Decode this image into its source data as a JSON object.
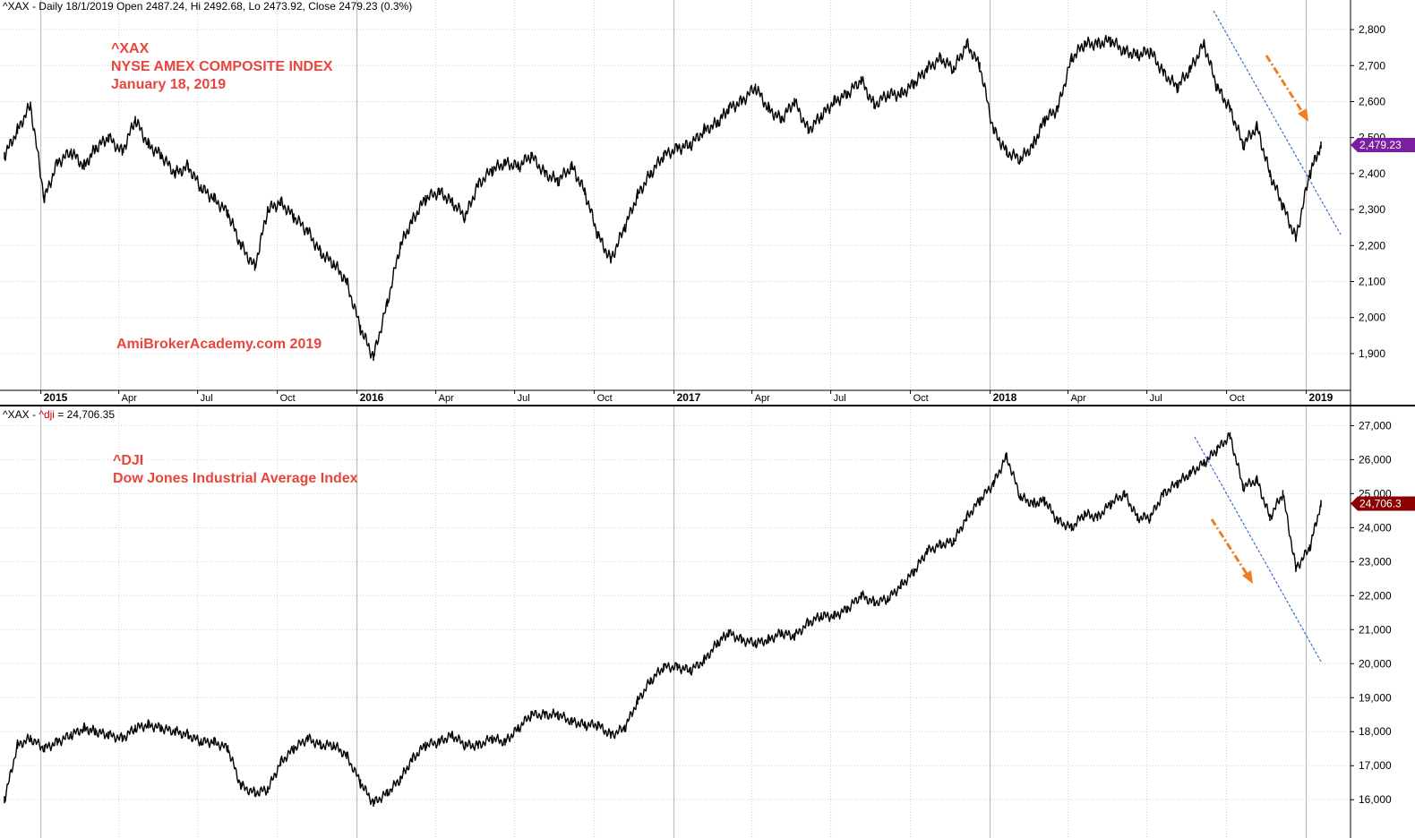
{
  "panels": {
    "top": {
      "header": "^XAX - Daily 18/1/2019 Open 2487.24, Hi 2492.68, Lo 2473.92, Close 2479.23 (0.3%)",
      "annotation": {
        "line1": "^XAX",
        "line2": "NYSE AMEX COMPOSITE INDEX",
        "line3": "January 18, 2019"
      },
      "watermark": "AmiBrokerAcademy.com  2019",
      "last_label": "2,479.23",
      "last_label_color": "#7b1fa2"
    },
    "bottom": {
      "header_prefix": "^XAX - ",
      "header_symbol": "^dji",
      "header_suffix": " = 24,706.35",
      "annotation": {
        "line1": "^DJI",
        "line2": "Dow Jones Industrial Average Index"
      },
      "last_label": "24,706.3",
      "last_label_color": "#8b0000"
    }
  },
  "colors": {
    "annotation": "#e8453c",
    "trendline": "#3a6fc4",
    "arrow": "#f07d1e",
    "price": "#000000",
    "grid": "#cfcfcf"
  },
  "chart_data": [
    {
      "type": "line",
      "name": "top-panel",
      "series": [
        {
          "x": [
            "2014-11-20",
            "2014-12-05",
            "2014-12-20",
            "2015-01-05",
            "2015-01-20",
            "2015-02-05",
            "2015-02-20",
            "2015-03-05",
            "2015-03-20",
            "2015-04-05",
            "2015-04-20",
            "2015-05-05",
            "2015-05-20",
            "2015-06-05",
            "2015-06-20",
            "2015-07-05",
            "2015-07-20",
            "2015-08-05",
            "2015-08-20",
            "2015-09-05",
            "2015-09-20",
            "2015-10-05",
            "2015-10-20",
            "2015-11-05",
            "2015-11-20",
            "2015-12-05",
            "2015-12-20",
            "2016-01-05",
            "2016-01-20",
            "2016-02-05",
            "2016-02-20",
            "2016-03-05",
            "2016-03-20",
            "2016-04-05",
            "2016-04-20",
            "2016-05-05",
            "2016-05-20",
            "2016-06-05",
            "2016-06-20",
            "2016-07-05",
            "2016-07-20",
            "2016-08-05",
            "2016-08-20",
            "2016-09-05",
            "2016-09-20",
            "2016-10-05",
            "2016-10-20",
            "2016-11-05",
            "2016-11-20",
            "2016-12-05",
            "2016-12-20",
            "2017-01-05",
            "2017-01-20",
            "2017-02-05",
            "2017-02-20",
            "2017-03-05",
            "2017-03-20",
            "2017-04-05",
            "2017-04-20",
            "2017-05-05",
            "2017-05-20",
            "2017-06-05",
            "2017-06-20",
            "2017-07-05",
            "2017-07-20",
            "2017-08-05",
            "2017-08-20",
            "2017-09-05",
            "2017-09-20",
            "2017-10-05",
            "2017-10-20",
            "2017-11-05",
            "2017-11-20",
            "2017-12-05",
            "2017-12-20",
            "2018-01-05",
            "2018-01-20",
            "2018-02-05",
            "2018-02-20",
            "2018-03-05",
            "2018-03-20",
            "2018-04-05",
            "2018-04-20",
            "2018-05-05",
            "2018-05-20",
            "2018-06-05",
            "2018-06-20",
            "2018-07-05",
            "2018-07-20",
            "2018-08-05",
            "2018-08-20",
            "2018-09-05",
            "2018-09-20",
            "2018-10-05",
            "2018-10-20",
            "2018-11-05",
            "2018-11-20",
            "2018-12-05",
            "2018-12-20",
            "2019-01-05",
            "2019-01-18"
          ],
          "values": [
            2450,
            2520,
            2590,
            2330,
            2430,
            2460,
            2420,
            2470,
            2500,
            2460,
            2550,
            2480,
            2450,
            2400,
            2420,
            2360,
            2330,
            2290,
            2200,
            2140,
            2300,
            2320,
            2280,
            2240,
            2180,
            2150,
            2100,
            1970,
            1890,
            2040,
            2200,
            2270,
            2330,
            2350,
            2320,
            2280,
            2370,
            2410,
            2430,
            2420,
            2450,
            2400,
            2380,
            2420,
            2350,
            2230,
            2160,
            2250,
            2340,
            2400,
            2450,
            2470,
            2480,
            2520,
            2540,
            2580,
            2600,
            2640,
            2580,
            2550,
            2600,
            2520,
            2560,
            2600,
            2620,
            2660,
            2590,
            2620,
            2620,
            2650,
            2690,
            2720,
            2690,
            2760,
            2700,
            2520,
            2460,
            2440,
            2480,
            2550,
            2580,
            2720,
            2760,
            2760,
            2770,
            2740,
            2730,
            2740,
            2680,
            2640,
            2690,
            2760,
            2640,
            2580,
            2480,
            2530,
            2400,
            2310,
            2220,
            2400,
            2479.23
          ]
        }
      ],
      "ylim": [
        1850,
        2830
      ],
      "yticks": [
        "2,800",
        "2,700",
        "2,600",
        "2,500",
        "2,400",
        "2,300",
        "2,200",
        "2,100",
        "2,000",
        "1,900"
      ],
      "xticks": [
        {
          "label": "2015",
          "year": true
        },
        {
          "label": "Apr"
        },
        {
          "label": "Jul"
        },
        {
          "label": "Oct"
        },
        {
          "label": "2016",
          "year": true
        },
        {
          "label": "Apr"
        },
        {
          "label": "Jul"
        },
        {
          "label": "Oct"
        },
        {
          "label": "2017",
          "year": true
        },
        {
          "label": "Apr"
        },
        {
          "label": "Jul"
        },
        {
          "label": "Oct"
        },
        {
          "label": "2018",
          "year": true
        },
        {
          "label": "Apr"
        },
        {
          "label": "Jul"
        },
        {
          "label": "Oct"
        },
        {
          "label": "2019",
          "year": true
        }
      ],
      "grid": true
    },
    {
      "type": "line",
      "name": "bottom-panel",
      "series": [
        {
          "x": [
            "2014-11-20",
            "2014-12-05",
            "2014-12-20",
            "2015-01-05",
            "2015-01-20",
            "2015-02-05",
            "2015-02-20",
            "2015-03-05",
            "2015-03-20",
            "2015-04-05",
            "2015-04-20",
            "2015-05-05",
            "2015-05-20",
            "2015-06-05",
            "2015-06-20",
            "2015-07-05",
            "2015-07-20",
            "2015-08-05",
            "2015-08-20",
            "2015-09-05",
            "2015-09-20",
            "2015-10-05",
            "2015-10-20",
            "2015-11-05",
            "2015-11-20",
            "2015-12-05",
            "2015-12-20",
            "2016-01-05",
            "2016-01-20",
            "2016-02-05",
            "2016-02-20",
            "2016-03-05",
            "2016-03-20",
            "2016-04-05",
            "2016-04-20",
            "2016-05-05",
            "2016-05-20",
            "2016-06-05",
            "2016-06-20",
            "2016-07-05",
            "2016-07-20",
            "2016-08-05",
            "2016-08-20",
            "2016-09-05",
            "2016-09-20",
            "2016-10-05",
            "2016-10-20",
            "2016-11-05",
            "2016-11-20",
            "2016-12-05",
            "2016-12-20",
            "2017-01-05",
            "2017-01-20",
            "2017-02-05",
            "2017-02-20",
            "2017-03-05",
            "2017-03-20",
            "2017-04-05",
            "2017-04-20",
            "2017-05-05",
            "2017-05-20",
            "2017-06-05",
            "2017-06-20",
            "2017-07-05",
            "2017-07-20",
            "2017-08-05",
            "2017-08-20",
            "2017-09-05",
            "2017-09-20",
            "2017-10-05",
            "2017-10-20",
            "2017-11-05",
            "2017-11-20",
            "2017-12-05",
            "2017-12-20",
            "2018-01-05",
            "2018-01-20",
            "2018-02-05",
            "2018-02-20",
            "2018-03-05",
            "2018-03-20",
            "2018-04-05",
            "2018-04-20",
            "2018-05-05",
            "2018-05-20",
            "2018-06-05",
            "2018-06-20",
            "2018-07-05",
            "2018-07-20",
            "2018-08-05",
            "2018-08-20",
            "2018-09-05",
            "2018-09-20",
            "2018-10-05",
            "2018-10-20",
            "2018-11-05",
            "2018-11-20",
            "2018-12-05",
            "2018-12-20",
            "2019-01-05",
            "2019-01-18"
          ],
          "values": [
            16000,
            17600,
            17800,
            17500,
            17700,
            17900,
            18100,
            18000,
            17900,
            17800,
            18100,
            18200,
            18100,
            18000,
            17900,
            17700,
            17700,
            17500,
            16400,
            16200,
            16300,
            17100,
            17500,
            17800,
            17600,
            17600,
            17300,
            16500,
            15900,
            16200,
            16600,
            17200,
            17600,
            17700,
            17900,
            17600,
            17600,
            17800,
            17700,
            18100,
            18500,
            18500,
            18500,
            18300,
            18200,
            18200,
            17900,
            18100,
            18900,
            19500,
            19900,
            19900,
            19800,
            20100,
            20600,
            20900,
            20700,
            20600,
            20700,
            20900,
            20800,
            21200,
            21400,
            21400,
            21600,
            22000,
            21800,
            21900,
            22300,
            22700,
            23300,
            23500,
            23600,
            24300,
            24800,
            25300,
            26100,
            24900,
            24700,
            24800,
            24200,
            24000,
            24400,
            24300,
            24700,
            25000,
            24300,
            24300,
            25000,
            25300,
            25600,
            25900,
            26300,
            26700,
            25200,
            25400,
            24300,
            25000,
            22800,
            23400,
            24706.35
          ]
        }
      ],
      "ylim": [
        15400,
        27300
      ],
      "yticks": [
        "27,000",
        "26,000",
        "25,000",
        "24,000",
        "23,000",
        "22,000",
        "21,000",
        "20,000",
        "19,000",
        "18,000",
        "17,000",
        "16,000"
      ],
      "grid": true
    }
  ]
}
